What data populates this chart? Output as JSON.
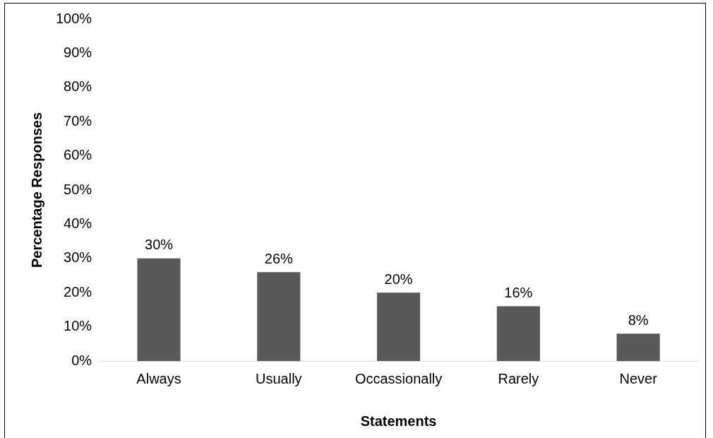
{
  "chart_data": {
    "type": "bar",
    "xlabel": "Statements",
    "ylabel": "Percentage Responses",
    "categories": [
      "Always",
      "Usually",
      "Occassionally",
      "Rarely",
      "Never"
    ],
    "values": [
      30,
      26,
      20,
      16,
      8
    ],
    "value_labels": [
      "30%",
      "26%",
      "20%",
      "16%",
      "8%"
    ],
    "color": "#595959",
    "ylim": [
      0,
      100
    ],
    "yticks": [
      {
        "value": 0,
        "label": "0%"
      },
      {
        "value": 10,
        "label": "10%"
      },
      {
        "value": 20,
        "label": "20%"
      },
      {
        "value": 30,
        "label": "30%"
      },
      {
        "value": 40,
        "label": "40%"
      },
      {
        "value": 50,
        "label": "50%"
      },
      {
        "value": 60,
        "label": "60%"
      },
      {
        "value": 70,
        "label": "70%"
      },
      {
        "value": 80,
        "label": "80%"
      },
      {
        "value": 90,
        "label": "90%"
      },
      {
        "value": 100,
        "label": "100%"
      }
    ],
    "grid": false,
    "legend": false
  }
}
